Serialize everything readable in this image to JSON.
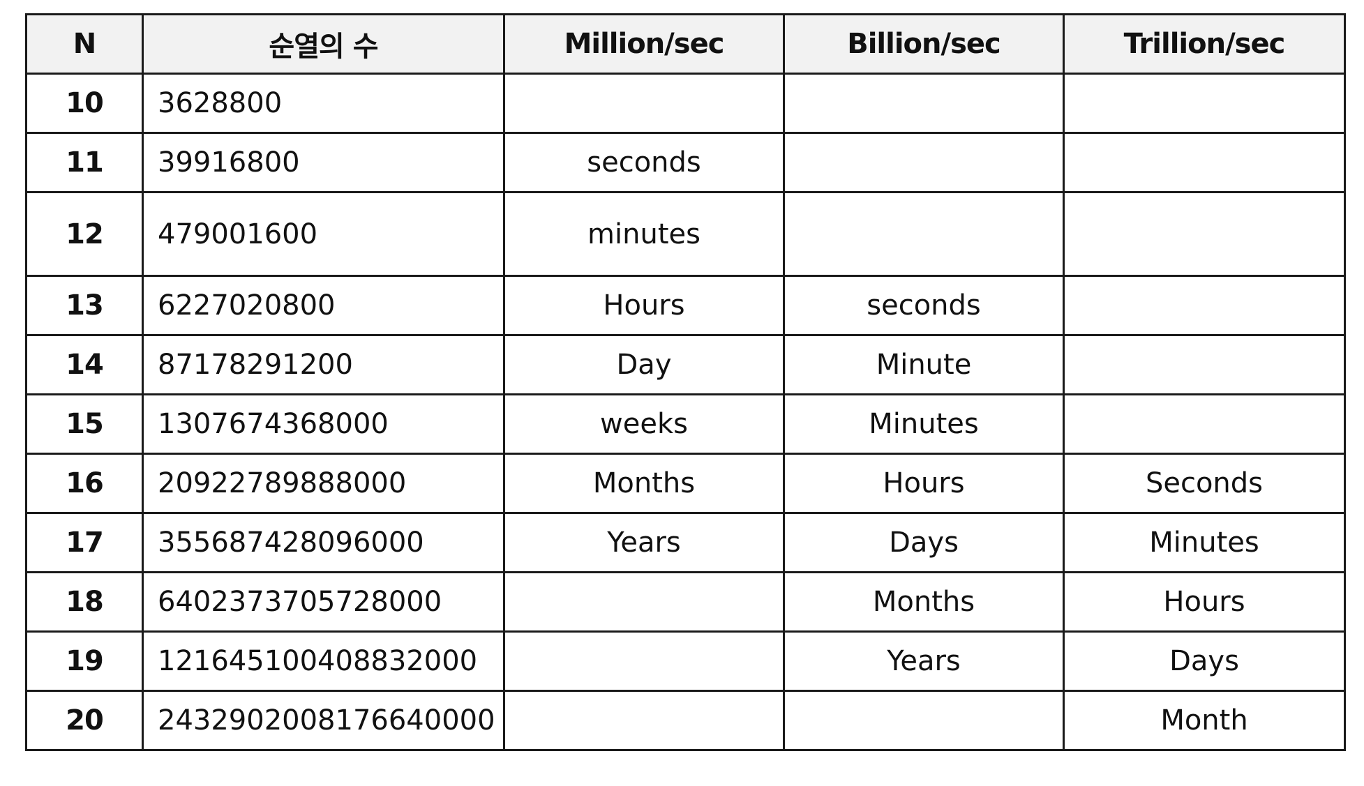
{
  "table": {
    "headers": [
      "N",
      "순열의 수",
      "Million/sec",
      "Billion/sec",
      "Trillion/sec"
    ],
    "rows": [
      {
        "n": "10",
        "count": "3628800",
        "million": "",
        "billion": "",
        "trillion": ""
      },
      {
        "n": "11",
        "count": "39916800",
        "million": "seconds",
        "billion": "",
        "trillion": ""
      },
      {
        "n": "12",
        "count": "479001600",
        "million": "minutes",
        "billion": "",
        "trillion": ""
      },
      {
        "n": "13",
        "count": "6227020800",
        "million": "Hours",
        "billion": "seconds",
        "trillion": ""
      },
      {
        "n": "14",
        "count": "87178291200",
        "million": "Day",
        "billion": "Minute",
        "trillion": ""
      },
      {
        "n": "15",
        "count": "1307674368000",
        "million": "weeks",
        "billion": "Minutes",
        "trillion": ""
      },
      {
        "n": "16",
        "count": "20922789888000",
        "million": "Months",
        "billion": "Hours",
        "trillion": "Seconds"
      },
      {
        "n": "17",
        "count": "355687428096000",
        "million": "Years",
        "billion": "Days",
        "trillion": "Minutes"
      },
      {
        "n": "18",
        "count": "6402373705728000",
        "million": "",
        "billion": "Months",
        "trillion": "Hours"
      },
      {
        "n": "19",
        "count": "121645100408832000",
        "million": "",
        "billion": "Years",
        "trillion": "Days"
      },
      {
        "n": "20",
        "count": "2432902008176640000",
        "million": "",
        "billion": "",
        "trillion": "Month"
      }
    ]
  }
}
